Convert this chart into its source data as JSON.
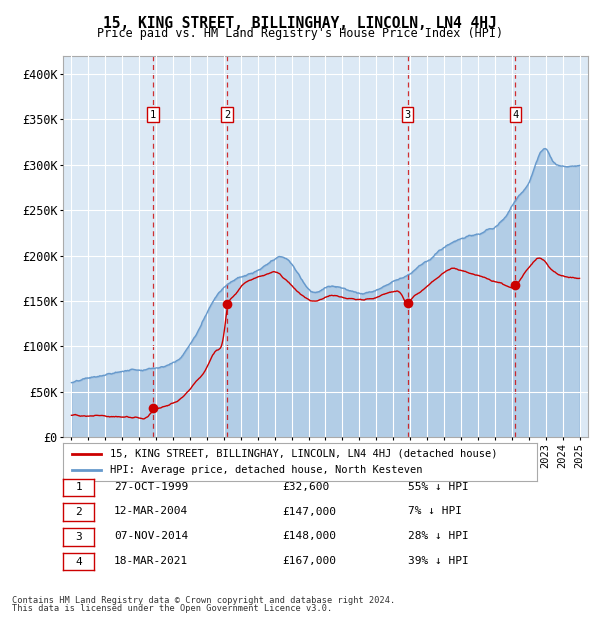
{
  "title": "15, KING STREET, BILLINGHAY, LINCOLN, LN4 4HJ",
  "subtitle": "Price paid vs. HM Land Registry's House Price Index (HPI)",
  "footer1": "Contains HM Land Registry data © Crown copyright and database right 2024.",
  "footer2": "This data is licensed under the Open Government Licence v3.0.",
  "legend_red": "15, KING STREET, BILLINGHAY, LINCOLN, LN4 4HJ (detached house)",
  "legend_blue": "HPI: Average price, detached house, North Kesteven",
  "transactions": [
    {
      "num": 1,
      "date": "27-OCT-1999",
      "date_x": 1999.82,
      "price": 32600,
      "pct": "55%",
      "dir": "↓"
    },
    {
      "num": 2,
      "date": "12-MAR-2004",
      "date_x": 2004.19,
      "price": 147000,
      "pct": "7%",
      "dir": "↓"
    },
    {
      "num": 3,
      "date": "07-NOV-2014",
      "date_x": 2014.85,
      "price": 148000,
      "pct": "28%",
      "dir": "↓"
    },
    {
      "num": 4,
      "date": "18-MAR-2021",
      "date_x": 2021.21,
      "price": 167000,
      "pct": "39%",
      "dir": "↓"
    }
  ],
  "ylim": [
    0,
    420000
  ],
  "xlim": [
    1994.5,
    2025.5
  ],
  "yticks": [
    0,
    50000,
    100000,
    150000,
    200000,
    250000,
    300000,
    350000,
    400000
  ],
  "ytick_labels": [
    "£0",
    "£50K",
    "£100K",
    "£150K",
    "£200K",
    "£250K",
    "£300K",
    "£350K",
    "£400K"
  ],
  "bg_color": "#dce9f5",
  "red_color": "#cc0000",
  "blue_color": "#6699cc",
  "grid_color": "#ffffff",
  "title_fontsize": 11,
  "subtitle_fontsize": 9.5,
  "hpi_data": [
    [
      1995.0,
      60000
    ],
    [
      1995.5,
      61000
    ],
    [
      1996.0,
      63000
    ],
    [
      1996.5,
      64500
    ],
    [
      1997.0,
      66000
    ],
    [
      1997.5,
      68000
    ],
    [
      1998.0,
      70000
    ],
    [
      1998.5,
      72000
    ],
    [
      1999.0,
      73000
    ],
    [
      1999.5,
      75000
    ],
    [
      2000.0,
      77000
    ],
    [
      2000.5,
      80000
    ],
    [
      2001.0,
      84000
    ],
    [
      2001.5,
      91000
    ],
    [
      2002.0,
      105000
    ],
    [
      2002.5,
      120000
    ],
    [
      2003.0,
      140000
    ],
    [
      2003.5,
      158000
    ],
    [
      2004.0,
      170000
    ],
    [
      2004.5,
      178000
    ],
    [
      2005.0,
      182000
    ],
    [
      2005.5,
      185000
    ],
    [
      2006.0,
      188000
    ],
    [
      2006.5,
      193000
    ],
    [
      2007.0,
      198000
    ],
    [
      2007.5,
      200000
    ],
    [
      2008.0,
      192000
    ],
    [
      2008.5,
      178000
    ],
    [
      2009.0,
      165000
    ],
    [
      2009.5,
      163000
    ],
    [
      2010.0,
      167000
    ],
    [
      2010.5,
      168000
    ],
    [
      2011.0,
      165000
    ],
    [
      2011.5,
      163000
    ],
    [
      2012.0,
      162000
    ],
    [
      2012.5,
      163000
    ],
    [
      2013.0,
      165000
    ],
    [
      2013.5,
      170000
    ],
    [
      2014.0,
      177000
    ],
    [
      2014.5,
      182000
    ],
    [
      2015.0,
      188000
    ],
    [
      2015.5,
      196000
    ],
    [
      2016.0,
      203000
    ],
    [
      2016.5,
      210000
    ],
    [
      2017.0,
      217000
    ],
    [
      2017.5,
      222000
    ],
    [
      2018.0,
      226000
    ],
    [
      2018.5,
      228000
    ],
    [
      2019.0,
      230000
    ],
    [
      2019.5,
      233000
    ],
    [
      2020.0,
      236000
    ],
    [
      2020.5,
      245000
    ],
    [
      2021.0,
      258000
    ],
    [
      2021.5,
      272000
    ],
    [
      2022.0,
      285000
    ],
    [
      2022.5,
      310000
    ],
    [
      2023.0,
      320000
    ],
    [
      2023.5,
      305000
    ],
    [
      2024.0,
      300000
    ],
    [
      2024.5,
      298000
    ],
    [
      2025.0,
      300000
    ]
  ],
  "red_data": [
    [
      1995.0,
      24000
    ],
    [
      1995.5,
      24500
    ],
    [
      1996.0,
      24000
    ],
    [
      1996.5,
      24500
    ],
    [
      1997.0,
      25000
    ],
    [
      1997.5,
      24500
    ],
    [
      1998.0,
      25000
    ],
    [
      1998.5,
      25500
    ],
    [
      1999.0,
      25000
    ],
    [
      1999.5,
      26000
    ],
    [
      1999.82,
      32600
    ],
    [
      2000.0,
      34000
    ],
    [
      2000.5,
      37000
    ],
    [
      2001.0,
      40000
    ],
    [
      2001.5,
      46000
    ],
    [
      2002.0,
      56000
    ],
    [
      2002.5,
      68000
    ],
    [
      2003.0,
      82000
    ],
    [
      2003.5,
      100000
    ],
    [
      2004.0,
      120000
    ],
    [
      2004.19,
      147000
    ],
    [
      2004.5,
      160000
    ],
    [
      2005.0,
      172000
    ],
    [
      2005.5,
      178000
    ],
    [
      2006.0,
      182000
    ],
    [
      2006.5,
      185000
    ],
    [
      2007.0,
      188000
    ],
    [
      2007.5,
      182000
    ],
    [
      2008.0,
      172000
    ],
    [
      2008.5,
      162000
    ],
    [
      2009.0,
      155000
    ],
    [
      2009.5,
      153000
    ],
    [
      2010.0,
      157000
    ],
    [
      2010.5,
      158000
    ],
    [
      2011.0,
      155000
    ],
    [
      2011.5,
      153000
    ],
    [
      2012.0,
      152000
    ],
    [
      2012.5,
      153000
    ],
    [
      2013.0,
      155000
    ],
    [
      2013.5,
      160000
    ],
    [
      2014.0,
      163000
    ],
    [
      2014.5,
      158000
    ],
    [
      2014.85,
      148000
    ],
    [
      2015.0,
      152000
    ],
    [
      2015.5,
      160000
    ],
    [
      2016.0,
      168000
    ],
    [
      2016.5,
      175000
    ],
    [
      2017.0,
      182000
    ],
    [
      2017.5,
      185000
    ],
    [
      2018.0,
      183000
    ],
    [
      2018.5,
      180000
    ],
    [
      2019.0,
      178000
    ],
    [
      2019.5,
      176000
    ],
    [
      2020.0,
      173000
    ],
    [
      2020.5,
      170000
    ],
    [
      2021.0,
      165000
    ],
    [
      2021.21,
      167000
    ],
    [
      2021.5,
      175000
    ],
    [
      2022.0,
      188000
    ],
    [
      2022.5,
      198000
    ],
    [
      2023.0,
      195000
    ],
    [
      2023.5,
      185000
    ],
    [
      2024.0,
      180000
    ],
    [
      2024.5,
      178000
    ],
    [
      2025.0,
      178000
    ]
  ]
}
